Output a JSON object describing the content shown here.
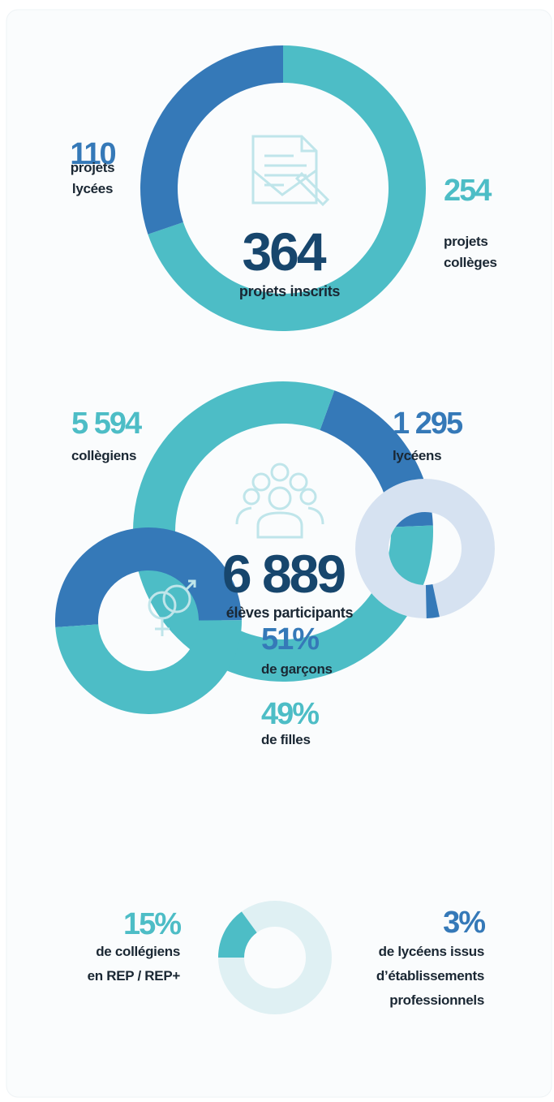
{
  "chart_data": [
    {
      "type": "donut",
      "categories": [
        "projets\ncollèges",
        "projets\nlycées"
      ],
      "values": [
        254,
        110
      ],
      "colors": [
        "#4dbdc6",
        "#3579b8"
      ],
      "total": 364,
      "caption": "projets inscrits"
    },
    {
      "type": "donut",
      "categories": [
        "lycéens",
        "collègiens"
      ],
      "values": [
        1295,
        5594
      ],
      "value_labels": [
        "1 295",
        "5 594"
      ],
      "colors": [
        "#3579b8",
        "#4dbdc6"
      ],
      "total": {
        "value": 6889,
        "label": "6 889"
      },
      "caption": "élèves participants"
    },
    {
      "type": "donut",
      "categories": [
        "de garçons",
        "de filles"
      ],
      "values": [
        51,
        49
      ],
      "value_labels": [
        "51%",
        "49%"
      ],
      "colors": [
        "#3579b8",
        "#4dbdc6"
      ]
    },
    {
      "type": "donut",
      "categories": [
        "de lycéens issus\nd’établissements\nprofessionnels"
      ],
      "values": [
        3
      ],
      "value_labels": [
        "3%"
      ],
      "colors": [
        "#3579b8"
      ],
      "track_color": "#d6e2f1"
    },
    {
      "type": "donut",
      "categories": [
        "de collégiens\nen REP / REP+"
      ],
      "values": [
        15
      ],
      "value_labels": [
        "15%"
      ],
      "colors": [
        "#4dbdc6"
      ],
      "track_color": "#dff0f3"
    }
  ]
}
